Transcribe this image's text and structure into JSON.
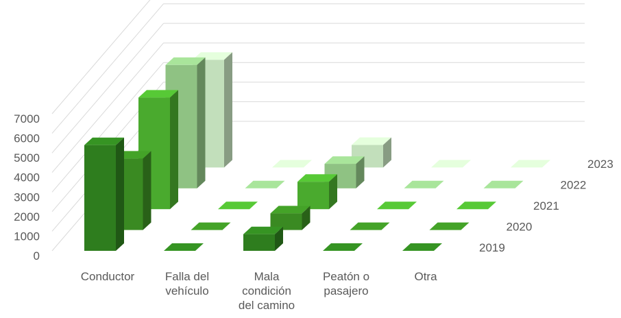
{
  "chart_data": {
    "type": "bar",
    "subtype": "3d-column",
    "title": "",
    "xlabel": "",
    "ylabel": "",
    "ylim": [
      0,
      7000
    ],
    "yticks": [
      "0",
      "1000",
      "2000",
      "3000",
      "4000",
      "5000",
      "6000",
      "7000"
    ],
    "grid": true,
    "legend": "none",
    "categories": [
      "Conductor",
      "Falla del vehículo",
      "Mala condición del camino",
      "Peatón o pasajero",
      "Otra"
    ],
    "category_label_lines": [
      [
        "Conductor"
      ],
      [
        "Falla del",
        "vehículo"
      ],
      [
        "Mala",
        "condición",
        "del camino"
      ],
      [
        "Peatón o",
        "pasajero"
      ],
      [
        "Otra"
      ]
    ],
    "series": [
      {
        "name": "2019",
        "color": "#2e7d1e",
        "values": [
          5400,
          0,
          850,
          0,
          0
        ]
      },
      {
        "name": "2020",
        "color": "#3a8a22",
        "values": [
          3650,
          0,
          850,
          0,
          0
        ]
      },
      {
        "name": "2021",
        "color": "#4aaa2e",
        "values": [
          5700,
          0,
          1400,
          0,
          0
        ]
      },
      {
        "name": "2022",
        "color": "#8fc283",
        "values": [
          6300,
          0,
          1250,
          0,
          0
        ]
      },
      {
        "name": "2023",
        "color": "#c2dfbb",
        "values": [
          5500,
          0,
          1150,
          0,
          0
        ]
      }
    ]
  }
}
